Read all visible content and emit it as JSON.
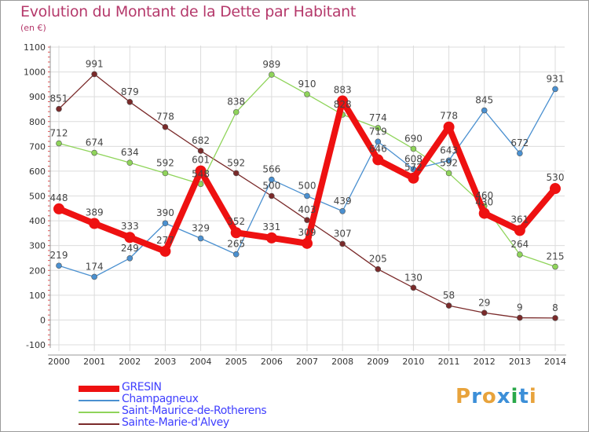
{
  "header": {
    "title": "Evolution du Montant de la Dette par Habitant",
    "subtitle": "(en €)"
  },
  "logo": {
    "text": "Proxiti",
    "letters": [
      "P",
      "r",
      "o",
      "x",
      "i",
      "t",
      "i"
    ],
    "colors": [
      "#e8a33c",
      "#3c8fd8",
      "#e8a33c",
      "#3c8fd8",
      "#2aa84a",
      "#3c8fd8",
      "#e8a33c"
    ]
  },
  "chart_data": {
    "type": "line",
    "title": "Evolution du Montant de la Dette par Habitant",
    "ylabel": "(en €)",
    "xlabel": "",
    "ylim": [
      -100,
      1100
    ],
    "yticks": [
      -100,
      0,
      100,
      200,
      300,
      400,
      500,
      600,
      700,
      800,
      900,
      1000,
      1100
    ],
    "categories": [
      "2000",
      "2001",
      "2002",
      "2003",
      "2004",
      "2005",
      "2006",
      "2007",
      "2008",
      "2009",
      "2010",
      "2011",
      "2012",
      "2013",
      "2014"
    ],
    "grid": true,
    "legend": "bottom-left",
    "series": [
      {
        "name": "Sainte-Marie-d'Alvey",
        "color": "#7a2a2a",
        "values": [
          851,
          991,
          879,
          778,
          682,
          592,
          500,
          403,
          307,
          205,
          130,
          58,
          29,
          9,
          8
        ]
      },
      {
        "name": "Saint-Maurice-de-Rotherens",
        "color": "#8fd45a",
        "values": [
          712,
          674,
          634,
          592,
          548,
          838,
          989,
          910,
          828,
          774,
          690,
          592,
          460,
          264,
          215
        ]
      },
      {
        "name": "Champagneux",
        "color": "#4a90d0",
        "values": [
          219,
          174,
          249,
          390,
          329,
          265,
          566,
          500,
          439,
          719,
          608,
          643,
          845,
          672,
          931
        ]
      },
      {
        "name": "GRESIN",
        "color": "#ee1111",
        "values": [
          448,
          389,
          333,
          277,
          601,
          352,
          331,
          309,
          883,
          646,
          572,
          778,
          430,
          361,
          530
        ]
      }
    ],
    "legend_order": [
      "GRESIN",
      "Champagneux",
      "Saint-Maurice-de-Rotherens",
      "Sainte-Marie-d'Alvey"
    ]
  }
}
